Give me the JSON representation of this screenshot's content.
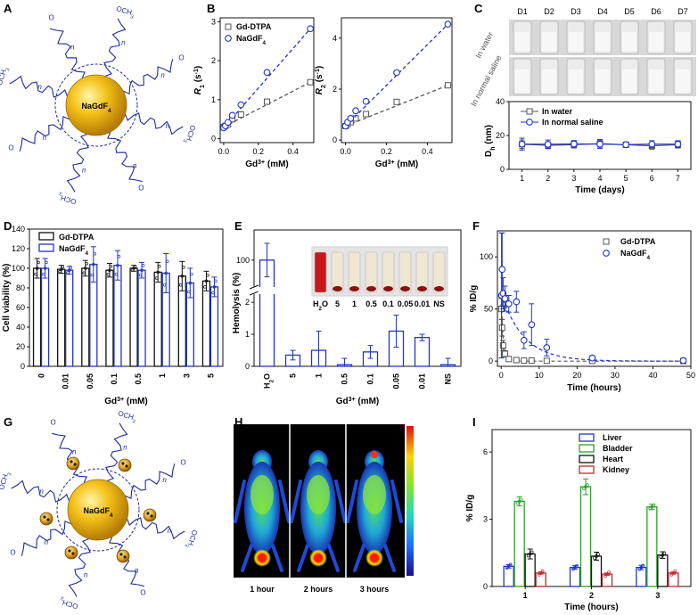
{
  "colors": {
    "gd": "#555555",
    "nagd": "#1f35c8",
    "liver": "#1f35c8",
    "bladder": "#2ca02c",
    "heart": "#111111",
    "kidney": "#c0282d",
    "shell": "#1f2a9c"
  },
  "panel_labels": [
    "A",
    "B",
    "C",
    "D",
    "E",
    "F",
    "G",
    "H",
    "I"
  ],
  "panel_a": {
    "core_label": "NaGdF4",
    "chain_text": [
      "OCH3",
      "n",
      "O"
    ]
  },
  "panel_g": {
    "core_label": "NaGdF4",
    "chain_text": [
      "OCH3",
      "n",
      "O"
    ]
  },
  "chart_data": [
    {
      "id": "B1",
      "type": "scatter",
      "xlabel": "Gd3+ (mM)",
      "ylabel": "R1 (s-1)",
      "xlim": [
        0,
        0.5
      ],
      "ylim": [
        0,
        3
      ],
      "xticks": [
        "0.0",
        "0.2",
        "0.4"
      ],
      "yticks": [
        "0",
        "1",
        "2",
        "3"
      ],
      "series": [
        {
          "name": "Gd-DTPA",
          "marker": "square",
          "x": [
            0,
            0.01,
            0.025,
            0.05,
            0.1,
            0.25,
            0.5
          ],
          "y": [
            0.3,
            0.33,
            0.37,
            0.5,
            0.62,
            0.95,
            1.45
          ]
        },
        {
          "name": "NaGdF4",
          "marker": "circle",
          "x": [
            0,
            0.01,
            0.025,
            0.05,
            0.1,
            0.25,
            0.5
          ],
          "y": [
            0.28,
            0.33,
            0.42,
            0.6,
            0.87,
            1.7,
            2.82
          ]
        }
      ]
    },
    {
      "id": "B2",
      "type": "scatter",
      "xlabel": "Gd3+ (mM)",
      "ylabel": "R2 (s-1)",
      "xlim": [
        0,
        0.5
      ],
      "ylim": [
        0,
        4.7
      ],
      "xticks": [
        "0.0",
        "0.2",
        "0.4"
      ],
      "yticks": [
        "0",
        "2",
        "4"
      ],
      "series": [
        {
          "name": "Gd-DTPA",
          "marker": "square",
          "x": [
            0,
            0.01,
            0.025,
            0.05,
            0.1,
            0.25,
            0.5
          ],
          "y": [
            0.55,
            0.62,
            0.7,
            0.85,
            1.02,
            1.5,
            2.15
          ]
        },
        {
          "name": "NaGdF4",
          "marker": "circle",
          "x": [
            0,
            0.01,
            0.025,
            0.05,
            0.1,
            0.25,
            0.5
          ],
          "y": [
            0.55,
            0.7,
            0.85,
            1.15,
            1.52,
            2.65,
            4.55
          ]
        }
      ]
    },
    {
      "id": "C",
      "type": "line",
      "xlabel": "Time (days)",
      "ylabel": "Dh (nm)",
      "ylim": [
        0,
        40
      ],
      "yticks": [
        "0",
        "20",
        "40"
      ],
      "categories": [
        "1",
        "2",
        "3",
        "4",
        "5",
        "6",
        "7"
      ],
      "day_labels": [
        "D1",
        "D2",
        "D3",
        "D4",
        "D5",
        "D6",
        "D7"
      ],
      "row_labels": [
        "In water",
        "In normal saline"
      ],
      "series": [
        {
          "name": "In water",
          "marker": "square",
          "values": [
            14.8,
            14.2,
            14.6,
            15.2,
            14.5,
            13.9,
            14.6
          ],
          "err": [
            2.5,
            2.0,
            2.0,
            2.5,
            1.5,
            2.0,
            2.0
          ]
        },
        {
          "name": "In normal saline",
          "marker": "circle",
          "values": [
            14.9,
            14.8,
            15.0,
            14.9,
            14.6,
            14.9,
            14.9
          ],
          "err": [
            3.5,
            2.5,
            2.0,
            2.5,
            1.5,
            2.0,
            2.0
          ]
        }
      ]
    },
    {
      "id": "D",
      "type": "bar",
      "xlabel": "Gd3+ (mM)",
      "ylabel": "Cell viability (%)",
      "ylim": [
        0,
        140
      ],
      "yticks": [
        "0",
        "20",
        "40",
        "60",
        "80",
        "100",
        "120",
        "140"
      ],
      "categories": [
        "0",
        "0.01",
        "0.05",
        "0.1",
        "0.5",
        "1",
        "3",
        "5"
      ],
      "series": [
        {
          "name": "Gd-DTPA",
          "values": [
            100,
            99,
            100,
            98,
            100,
            96,
            92,
            87
          ],
          "err": [
            10,
            4,
            8,
            7,
            3,
            10,
            15,
            10
          ]
        },
        {
          "name": "NaGdF4",
          "values": [
            100,
            98,
            104,
            103,
            98,
            95,
            85,
            81
          ],
          "err": [
            10,
            4,
            18,
            15,
            8,
            20,
            15,
            10
          ]
        }
      ]
    },
    {
      "id": "E",
      "type": "bar",
      "xlabel": "Gd3+ (mM)",
      "ylabel": "Hemolysis (%)",
      "yticks": [
        "0",
        "1",
        "2",
        "100"
      ],
      "categories": [
        "H2O",
        "5",
        "1",
        "0.5",
        "0.1",
        "0.05",
        "0.01",
        "NS"
      ],
      "values": [
        100,
        0.35,
        0.5,
        0.05,
        0.45,
        1.1,
        0.9,
        0.05
      ],
      "err": [
        10,
        0.15,
        0.6,
        0.2,
        0.2,
        0.5,
        0.1,
        0.2
      ],
      "inset_labels": [
        "H2O",
        "5",
        "1",
        "0.5",
        "0.1",
        "0.05",
        "0.01",
        "NS"
      ]
    },
    {
      "id": "F",
      "type": "scatter",
      "xlabel": "Time (hours)",
      "ylabel": "% ID/g",
      "xlim": [
        -1,
        50
      ],
      "ylim": [
        -5,
        125
      ],
      "xticks": [
        "0",
        "10",
        "20",
        "30",
        "40",
        "50"
      ],
      "yticks": [
        "0",
        "50",
        "100"
      ],
      "series": [
        {
          "name": "Gd-DTPA",
          "marker": "square",
          "x": [
            0.08,
            0.25,
            0.5,
            1,
            2,
            4,
            6,
            8,
            12,
            24,
            48
          ],
          "y": [
            50,
            32,
            15,
            7,
            2,
            1,
            0.5,
            0.5,
            0.3,
            0.2,
            0.1
          ],
          "err": [
            10,
            8,
            5,
            3,
            1,
            0.5,
            0.5,
            0.5,
            0.3,
            0.2,
            0.1
          ]
        },
        {
          "name": "NaGdF4",
          "marker": "circle",
          "x": [
            0.08,
            0.25,
            0.5,
            1,
            2,
            4,
            6,
            8,
            12,
            24,
            48
          ],
          "y": [
            63,
            88,
            65,
            60,
            55,
            57,
            20,
            35,
            13,
            3,
            0.5
          ],
          "err": [
            60,
            35,
            15,
            12,
            8,
            10,
            8,
            20,
            8,
            2,
            0.5
          ]
        }
      ]
    },
    {
      "id": "I",
      "type": "bar",
      "xlabel": "Time (hours)",
      "ylabel": "% ID/g",
      "ylim": [
        0,
        7
      ],
      "yticks": [
        "0",
        "3",
        "6"
      ],
      "categories": [
        "1",
        "2",
        "3"
      ],
      "series": [
        {
          "name": "Liver",
          "values": [
            0.9,
            0.85,
            0.85
          ],
          "err": [
            0.08,
            0.08,
            0.1
          ]
        },
        {
          "name": "Bladder",
          "values": [
            3.8,
            4.45,
            3.55
          ],
          "err": [
            0.2,
            0.35,
            0.12
          ]
        },
        {
          "name": "Heart",
          "values": [
            1.45,
            1.35,
            1.4
          ],
          "err": [
            0.22,
            0.18,
            0.15
          ]
        },
        {
          "name": "Kidney",
          "values": [
            0.6,
            0.55,
            0.6
          ],
          "err": [
            0.05,
            0.05,
            0.05
          ]
        }
      ]
    }
  ],
  "panel_h": {
    "time_labels": [
      "1 hour",
      "2 hours",
      "3 hours"
    ],
    "bladder_intensity": [
      1.0,
      1.0,
      1.0
    ]
  }
}
